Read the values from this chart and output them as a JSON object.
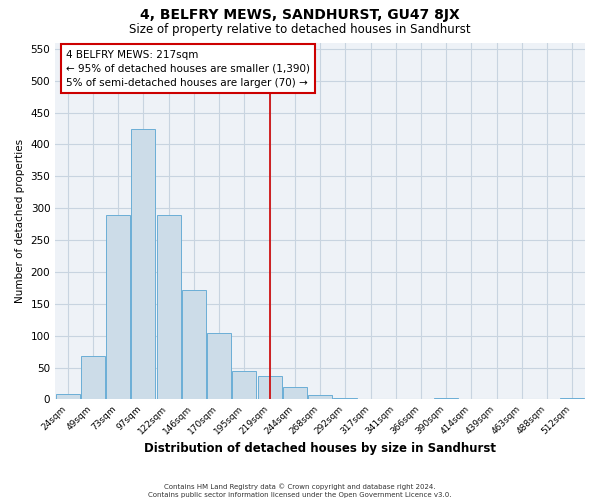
{
  "title": "4, BELFRY MEWS, SANDHURST, GU47 8JX",
  "subtitle": "Size of property relative to detached houses in Sandhurst",
  "xlabel": "Distribution of detached houses by size in Sandhurst",
  "ylabel": "Number of detached properties",
  "bar_labels": [
    "24sqm",
    "49sqm",
    "73sqm",
    "97sqm",
    "122sqm",
    "146sqm",
    "170sqm",
    "195sqm",
    "219sqm",
    "244sqm",
    "268sqm",
    "292sqm",
    "317sqm",
    "341sqm",
    "366sqm",
    "390sqm",
    "414sqm",
    "439sqm",
    "463sqm",
    "488sqm",
    "512sqm"
  ],
  "bar_values": [
    8,
    68,
    290,
    425,
    290,
    172,
    105,
    44,
    37,
    20,
    7,
    2,
    0,
    0,
    0,
    3,
    0,
    0,
    0,
    0,
    3
  ],
  "bar_color": "#ccdce8",
  "bar_edge_color": "#6baed6",
  "ylim": [
    0,
    560
  ],
  "yticks": [
    0,
    50,
    100,
    150,
    200,
    250,
    300,
    350,
    400,
    450,
    500,
    550
  ],
  "vline_x": 8,
  "vline_color": "#cc0000",
  "annotation_title": "4 BELFRY MEWS: 217sqm",
  "annotation_line1": "← 95% of detached houses are smaller (1,390)",
  "annotation_line2": "5% of semi-detached houses are larger (70) →",
  "footer1": "Contains HM Land Registry data © Crown copyright and database right 2024.",
  "footer2": "Contains public sector information licensed under the Open Government Licence v3.0.",
  "background_color": "#ffffff",
  "plot_bg_color": "#eef2f7",
  "grid_color": "#c8d4e0",
  "title_fontsize": 10,
  "subtitle_fontsize": 8.5,
  "xlabel_fontsize": 8.5,
  "ylabel_fontsize": 7.5
}
